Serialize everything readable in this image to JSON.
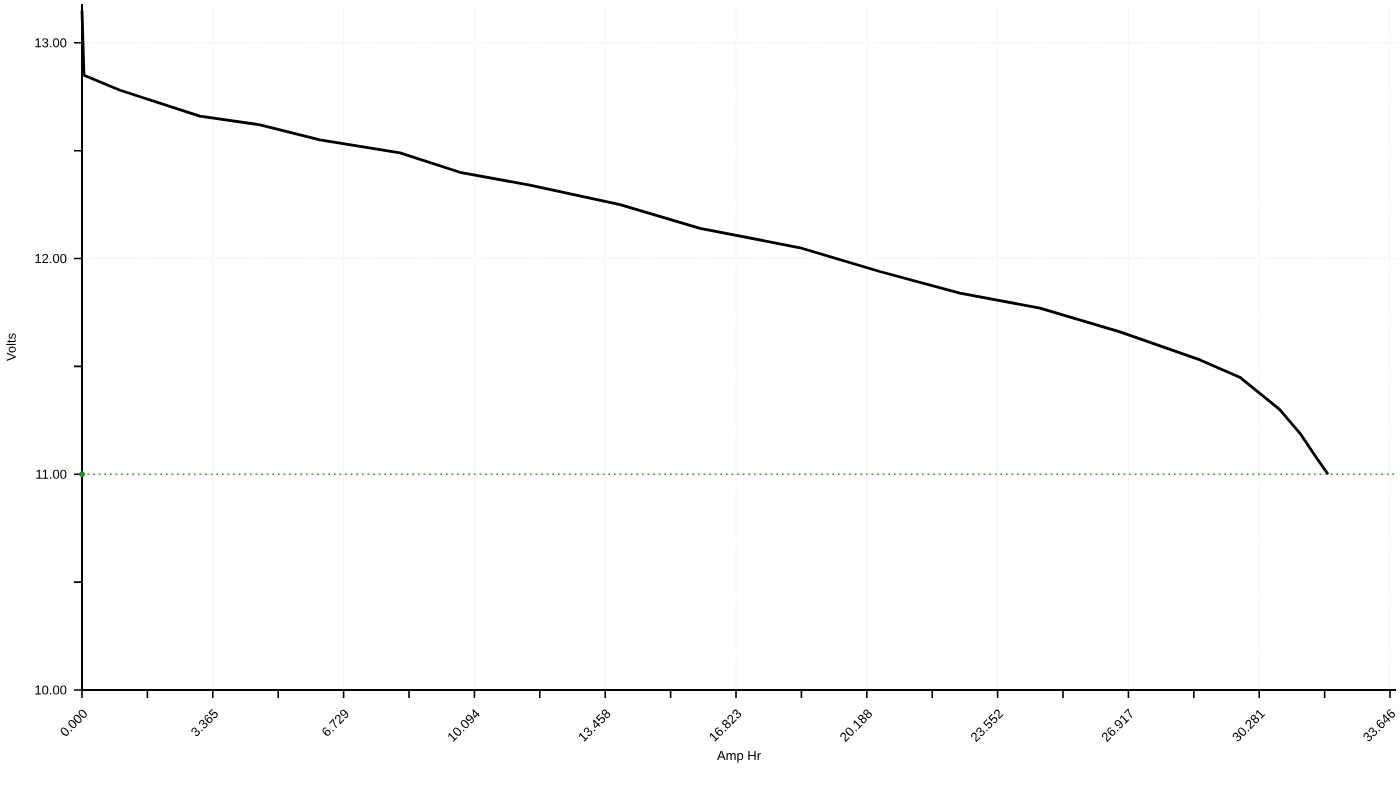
{
  "chart_data": {
    "type": "line",
    "xlabel": "Amp Hr",
    "ylabel": "Volts",
    "x": [
      0,
      0.05,
      0.98,
      3.03,
      4.58,
      6.12,
      8.18,
      9.72,
      11.52,
      13.84,
      15.9,
      18.47,
      20.52,
      22.58,
      24.64,
      26.7,
      28.76,
      29.78,
      30.81,
      31.33,
      31.74,
      32.05
    ],
    "series": [
      {
        "color": "#000000",
        "values": [
          13.15,
          12.85,
          12.78,
          12.66,
          12.62,
          12.55,
          12.49,
          12.4,
          12.34,
          12.25,
          12.14,
          12.05,
          11.94,
          11.84,
          11.77,
          11.66,
          11.53,
          11.45,
          11.3,
          11.19,
          11.08,
          11.0
        ]
      }
    ],
    "xlim": [
      0,
      33.8
    ],
    "ylim": [
      10,
      13.18
    ],
    "xticks": [
      {
        "value": 0,
        "label": "0.000"
      },
      {
        "value": 3.3646,
        "label": "3.365"
      },
      {
        "value": 6.7292,
        "label": "6.729"
      },
      {
        "value": 10.0938,
        "label": "10.094"
      },
      {
        "value": 13.4584,
        "label": "13.458"
      },
      {
        "value": 16.823,
        "label": "16.823"
      },
      {
        "value": 20.1876,
        "label": "20.188"
      },
      {
        "value": 23.5522,
        "label": "23.552"
      },
      {
        "value": 26.9168,
        "label": "26.917"
      },
      {
        "value": 30.2814,
        "label": "30.281"
      },
      {
        "value": 33.646,
        "label": "33.646"
      }
    ],
    "yticks": [
      {
        "value": 10,
        "label": "10.00"
      },
      {
        "value": 11,
        "label": "11.00"
      },
      {
        "value": 12,
        "label": "12.00"
      },
      {
        "value": 13,
        "label": "13.00"
      }
    ],
    "ref_lines": [
      {
        "axis": "y",
        "value": 11,
        "color": "#2e8b2e",
        "line_style": "dotted"
      }
    ],
    "grid": true,
    "marker": "none",
    "line_style": "solid"
  }
}
